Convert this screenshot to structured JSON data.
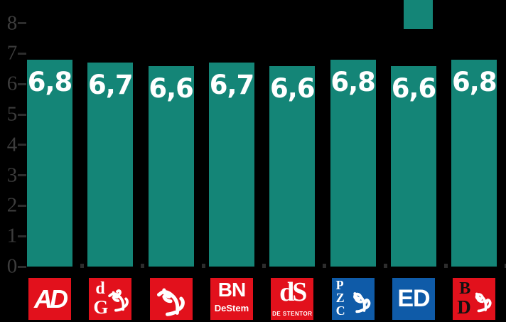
{
  "chart_data": {
    "type": "bar",
    "title": "",
    "categories": [
      "AD",
      "de Gelderlander",
      "Tubantia",
      "BN DeStem",
      "de Stentor",
      "PZC",
      "ED",
      "Brabants Dagblad"
    ],
    "values": [
      6.8,
      6.7,
      6.6,
      6.7,
      6.6,
      6.8,
      6.6,
      6.8
    ],
    "value_labels": [
      "6,8",
      "6,7",
      "6,6",
      "6,7",
      "6,6",
      "6,8",
      "6,6",
      "6,8"
    ],
    "ylim": [
      0,
      8
    ],
    "ytick_labels": [
      "0",
      "1",
      "2",
      "3",
      "4",
      "5",
      "6",
      "7",
      "8"
    ],
    "grid": false,
    "legend": {
      "position": "top-right",
      "swatch_color": "#148577",
      "label": ""
    },
    "colors": {
      "bar": "#148577",
      "value_label": "#ffffff",
      "axis_text": "#3d3d3d",
      "tick": "#2d2d2d",
      "background": "#000000"
    }
  },
  "logos": [
    {
      "name": "AD",
      "layout": "single-italic",
      "bg": "#e2111c",
      "fg": "#ffffff",
      "main": "AD"
    },
    {
      "name": "de Gelderlander",
      "layout": "letters-figure",
      "bg": "#e2111c",
      "fg": "#ffffff",
      "letter_top": "d",
      "letter_bottom": "G",
      "figure": "horse-rider",
      "figure_color": "#ffffff"
    },
    {
      "name": "Tubantia",
      "layout": "figure",
      "bg": "#e2111c",
      "fg": "#ffffff",
      "figure": "horse",
      "figure_color": "#ffffff"
    },
    {
      "name": "BN DeStem",
      "layout": "two-line",
      "bg": "#e2111c",
      "fg": "#ffffff",
      "main": "BN",
      "sub": "DeStem"
    },
    {
      "name": "de Stentor",
      "layout": "two-line-serif",
      "bg": "#e2111c",
      "fg": "#ffffff",
      "main": "dS",
      "sub": "DE STENTOR"
    },
    {
      "name": "PZC",
      "layout": "stacked-figure",
      "bg": "#0f5ba8",
      "fg": "#ffffff",
      "letters": "PZC",
      "figure": "lion",
      "figure_color": "#ffffff"
    },
    {
      "name": "ED",
      "layout": "single",
      "bg": "#0f5ba8",
      "fg": "#ffffff",
      "main": "ED"
    },
    {
      "name": "Brabants Dagblad",
      "layout": "letters-figure",
      "bg": "#e2111c",
      "fg": "#111111",
      "letter_top": "B",
      "letter_bottom": "D",
      "figure": "lion",
      "figure_color": "#ffffff"
    }
  ]
}
